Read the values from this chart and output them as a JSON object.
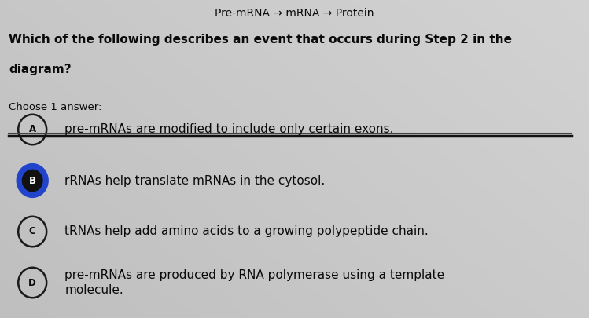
{
  "background_color": "#c8c8c8",
  "background_right_color": "#b0b0b0",
  "top_text_left": "Pre-mRNA →",
  "top_text_right": "mRNA → Protein",
  "question_line1": "Which of the following describes an event that occurs during Step 2 in the",
  "question_line2": "diagram?",
  "choose_label": "Choose 1 answer:",
  "answers": [
    {
      "letter": "A",
      "text": "pre-mRNAs are modified to include only certain exons.",
      "selected": false,
      "two_lines": false
    },
    {
      "letter": "B",
      "text": "rRNAs help translate mRNAs in the cytosol.",
      "selected": true,
      "two_lines": false
    },
    {
      "letter": "C",
      "text": "tRNAs help add amino acids to a growing polypeptide chain.",
      "selected": false,
      "two_lines": false
    },
    {
      "letter": "D",
      "text": "pre-mRNAs are produced by RNA polymerase using a template\nmolecule.",
      "selected": false,
      "two_lines": true
    }
  ],
  "circle_color_unselected": "#1a1a1a",
  "circle_fill_selected_outer": "#2244dd",
  "circle_fill_selected_inner": "#1a1a1a",
  "divider_color": "#1a1a1a",
  "text_color": "#0a0a0a",
  "question_bold_color": "#0a0a0a",
  "figsize": [
    7.49,
    4.05
  ],
  "dpi": 100
}
